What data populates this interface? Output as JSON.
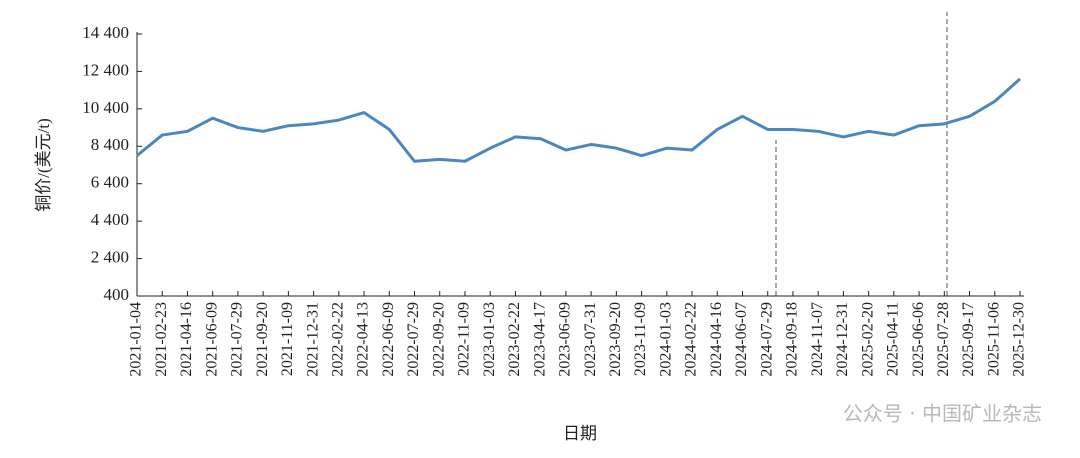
{
  "chart_data": {
    "type": "line",
    "y_label": "铜价/(美元/t)",
    "x_label": "日期",
    "watermark": "公众号 · 中国矿业杂志",
    "categories": [
      "2021-01-04",
      "2021-02-23",
      "2021-04-16",
      "2021-06-09",
      "2021-07-29",
      "2021-09-20",
      "2021-11-09",
      "2021-12-31",
      "2022-02-22",
      "2022-04-13",
      "2022-06-09",
      "2022-07-29",
      "2022-09-20",
      "2022-11-09",
      "2023-01-03",
      "2023-02-22",
      "2023-04-17",
      "2023-06-09",
      "2023-07-31",
      "2023-09-20",
      "2023-11-09",
      "2024-01-03",
      "2024-02-22",
      "2024-04-16",
      "2024-06-07",
      "2024-07-29",
      "2024-09-18",
      "2024-11-07",
      "2024-12-31",
      "2025-02-20",
      "2025-04-11",
      "2025-06-06",
      "2025-07-28",
      "2025-09-17",
      "2025-11-06",
      "2025-12-30"
    ],
    "series": [
      {
        "color": "#4a86c0",
        "values": [
          7900,
          9000,
          9200,
          9900,
          9400,
          9200,
          9500,
          9600,
          9800,
          10200,
          9300,
          7600,
          7700,
          7600,
          8300,
          8900,
          8800,
          8200,
          8500,
          8300,
          7900,
          8300,
          8200,
          9300,
          10000,
          9300,
          9300,
          9200,
          8900,
          9200,
          9000,
          9500,
          9600,
          10000,
          10800,
          12000
        ]
      }
    ],
    "ylim": [
      400,
      14400
    ],
    "yticks": [
      400,
      {
        "value": 2400,
        "label": "2 400"
      },
      {
        "value": 4400,
        "label": "4 400"
      },
      {
        "value": 6400,
        "label": "6 400"
      },
      {
        "value": 8400,
        "label": "8 400"
      },
      {
        "value": 10400,
        "label": "10 400"
      },
      {
        "value": 12400,
        "label": "12 400"
      },
      {
        "value": 14400,
        "label": "14 400"
      }
    ]
  }
}
